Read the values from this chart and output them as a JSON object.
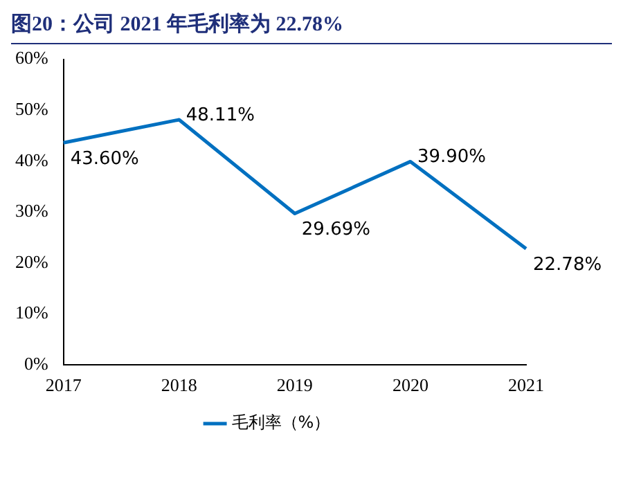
{
  "chart_data": {
    "type": "line",
    "title": "图20：公司 2021 年毛利率为 22.78%",
    "categories": [
      "2017",
      "2018",
      "2019",
      "2020",
      "2021"
    ],
    "series": [
      {
        "name": "毛利率（%）",
        "color": "#0070c0",
        "values": [
          43.6,
          48.11,
          29.69,
          39.9,
          22.78
        ],
        "value_labels": [
          "43.60%",
          "48.11%",
          "29.69%",
          "39.90%",
          "22.78%"
        ]
      }
    ],
    "ylim": [
      0,
      60
    ],
    "yticks": [
      {
        "value": 0,
        "label": "0%"
      },
      {
        "value": 10,
        "label": "10%"
      },
      {
        "value": 20,
        "label": "20%"
      },
      {
        "value": 30,
        "label": "30%"
      },
      {
        "value": 40,
        "label": "40%"
      },
      {
        "value": 50,
        "label": "50%"
      },
      {
        "value": 60,
        "label": "60%"
      }
    ],
    "grid": false,
    "legend": "bottom",
    "marker": "none",
    "line_style": "solid"
  }
}
